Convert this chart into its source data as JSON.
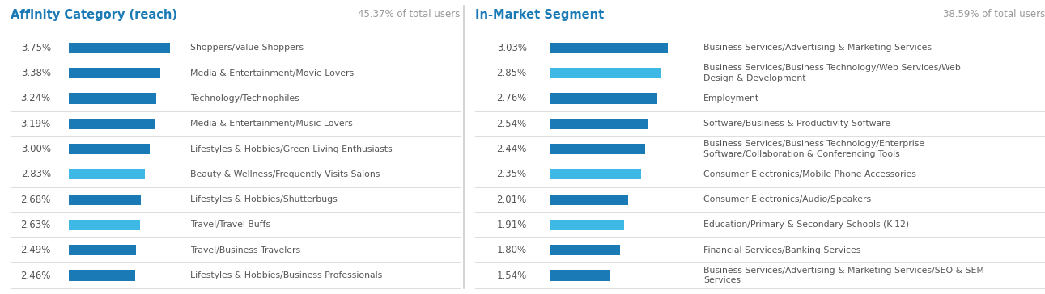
{
  "left_title": "Affinity Category (reach)",
  "left_subtitle": "45.37% of total users",
  "left_categories": [
    "Shoppers/Value Shoppers",
    "Media & Entertainment/Movie Lovers",
    "Technology/Technophiles",
    "Media & Entertainment/Music Lovers",
    "Lifestyles & Hobbies/Green Living Enthusiasts",
    "Beauty & Wellness/Frequently Visits Salons",
    "Lifestyles & Hobbies/Shutterbugs",
    "Travel/Travel Buffs",
    "Travel/Business Travelers",
    "Lifestyles & Hobbies/Business Professionals"
  ],
  "left_values": [
    3.75,
    3.38,
    3.24,
    3.19,
    3.0,
    2.83,
    2.68,
    2.63,
    2.49,
    2.46
  ],
  "left_labels": [
    "3.75%",
    "3.38%",
    "3.24%",
    "3.19%",
    "3.00%",
    "2.83%",
    "2.68%",
    "2.63%",
    "2.49%",
    "2.46%"
  ],
  "right_title": "In-Market Segment",
  "right_subtitle": "38.59% of total users",
  "right_categories": [
    "Business Services/Advertising & Marketing Services",
    "Business Services/Business Technology/Web Services/Web\nDesign & Development",
    "Employment",
    "Software/Business & Productivity Software",
    "Business Services/Business Technology/Enterprise\nSoftware/Collaboration & Conferencing Tools",
    "Consumer Electronics/Mobile Phone Accessories",
    "Consumer Electronics/Audio/Speakers",
    "Education/Primary & Secondary Schools (K-12)",
    "Financial Services/Banking Services",
    "Business Services/Advertising & Marketing Services/SEO & SEM\nServices"
  ],
  "right_values": [
    3.03,
    2.85,
    2.76,
    2.54,
    2.44,
    2.35,
    2.01,
    1.91,
    1.8,
    1.54
  ],
  "right_labels": [
    "3.03%",
    "2.85%",
    "2.76%",
    "2.54%",
    "2.44%",
    "2.35%",
    "2.01%",
    "1.91%",
    "1.80%",
    "1.54%"
  ],
  "bar_color_dark": "#1a7ab5",
  "bar_color_light": "#3eb8e5",
  "title_color": "#1a7ab5",
  "subtitle_color": "#999999",
  "label_color": "#555555",
  "category_color": "#555555",
  "separator_color": "#dddddd",
  "bg_color": "#ffffff",
  "divider_color": "#cccccc"
}
